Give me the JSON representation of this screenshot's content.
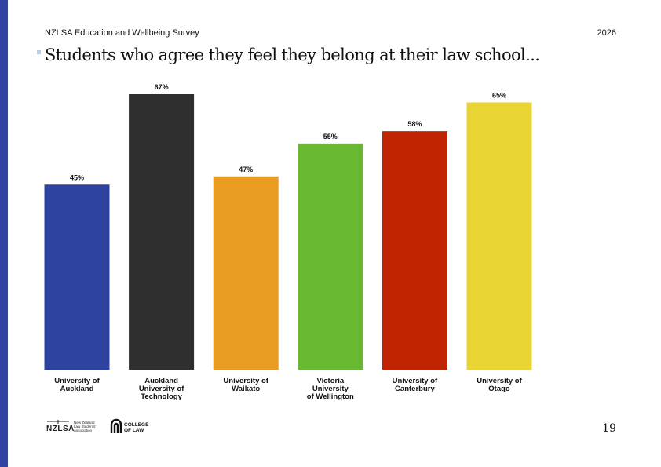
{
  "header": {
    "left": "NZLSA Education and Wellbeing Survey",
    "right": "2026"
  },
  "title": "Students who agree they feel they belong at their law school...",
  "page_number": "19",
  "colors": {
    "accent_bar": "#2e44a0",
    "title_marker": "#b9c9e8"
  },
  "footer": {
    "logo1": {
      "text": "NZLSA",
      "subtext": [
        "New Zealand",
        "Law Students'",
        "Association"
      ]
    },
    "logo2": {
      "text": [
        "COLLEGE",
        "OF LAW"
      ]
    }
  },
  "chart_data": {
    "type": "bar",
    "categories": [
      [
        "University of",
        "Auckland"
      ],
      [
        "Auckland",
        "University of",
        "Technology"
      ],
      [
        "University of",
        "Waikato"
      ],
      [
        "Victoria",
        "University",
        "of Wellington"
      ],
      [
        "University of",
        "Canterbury"
      ],
      [
        "University of",
        "Otago"
      ]
    ],
    "values": [
      45,
      67,
      47,
      55,
      58,
      65
    ],
    "value_labels": [
      "45%",
      "67%",
      "47%",
      "55%",
      "58%",
      "65%"
    ],
    "colors": [
      "#2e43a0",
      "#2f2f2f",
      "#e89c22",
      "#68b832",
      "#c02400",
      "#e8d534"
    ],
    "ylim": [
      0,
      67
    ],
    "grid": false,
    "legend": "none"
  }
}
